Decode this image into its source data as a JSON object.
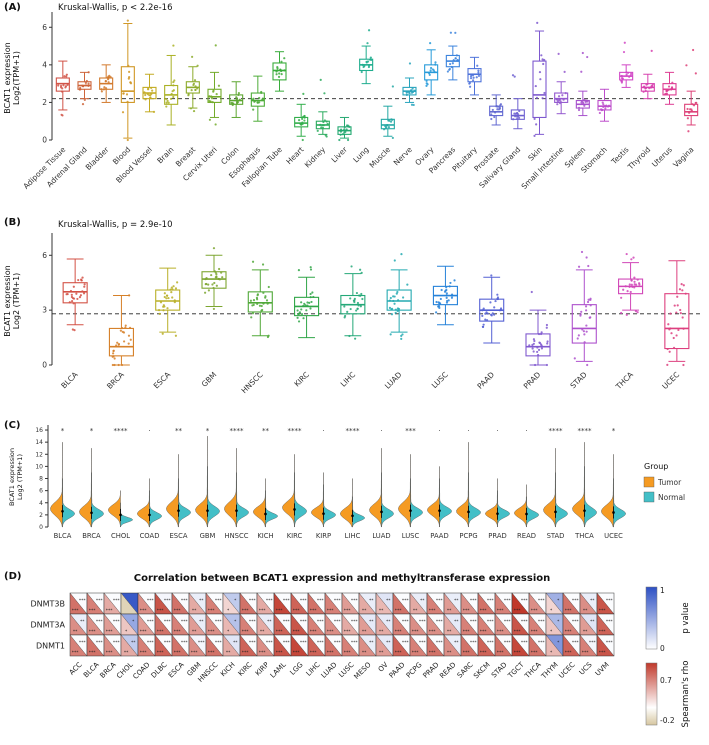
{
  "figure": {
    "bg": "#ffffff",
    "panel_labels": {
      "a": "(A)",
      "b": "(B)",
      "c": "(C)",
      "d": "(D)"
    }
  },
  "chart_data": [
    {
      "id": "A",
      "type": "box",
      "title": "Kruskal-Wallis, p < 2.2e-16",
      "ylabel_lines": [
        "BCAT1 expression",
        "Log2(TPM+1)"
      ],
      "ylim": [
        0,
        6.6
      ],
      "yticks": [
        0,
        2,
        4,
        6
      ],
      "dashed_line": 2.2,
      "categories": [
        "Adipose Tissue",
        "Adrenal Gland",
        "Bladder",
        "Blood",
        "Blood Vessel",
        "Brain",
        "Breast",
        "Cervix Uteri",
        "Colon",
        "Esophagus",
        "Fallopian Tube",
        "Heart",
        "Kidney",
        "Liver",
        "Lung",
        "Muscle",
        "Nerve",
        "Ovary",
        "Pancreas",
        "Pituitary",
        "Prostate",
        "Salivary Gland",
        "Skin",
        "Small Intestine",
        "Spleen",
        "Stomach",
        "Testis",
        "Thyroid",
        "Uterus",
        "Vagina"
      ],
      "colors": [
        "hsl(5,60%,55%)",
        "hsl(17,60%,52%)",
        "hsl(28,65%,50%)",
        "hsl(40,70%,48%)",
        "hsl(51,70%,45%)",
        "hsl(63,65%,42%)",
        "hsl(74,60%,42%)",
        "hsl(86,60%,42%)",
        "hsl(97,55%,42%)",
        "hsl(109,50%,45%)",
        "hsl(121,50%,45%)",
        "hsl(132,55%,44%)",
        "hsl(144,60%,42%)",
        "hsl(155,65%,40%)",
        "hsl(167,70%,40%)",
        "hsl(178,65%,40%)",
        "hsl(190,65%,45%)",
        "hsl(201,70%,50%)",
        "hsl(213,70%,55%)",
        "hsl(224,65%,58%)",
        "hsl(236,55%,60%)",
        "hsl(247,55%,60%)",
        "hsl(259,55%,58%)",
        "hsl(270,55%,58%)",
        "hsl(282,55%,56%)",
        "hsl(293,55%,55%)",
        "hsl(305,60%,55%)",
        "hsl(316,65%,55%)",
        "hsl(328,70%,55%)",
        "hsl(339,70%,56%)"
      ],
      "boxes": [
        [
          1.6,
          2.6,
          3.0,
          3.3,
          4.2
        ],
        [
          2.2,
          2.7,
          2.9,
          3.1,
          3.6
        ],
        [
          2.0,
          2.7,
          3.0,
          3.3,
          4.0
        ],
        [
          0.1,
          2.0,
          2.6,
          3.9,
          6.2
        ],
        [
          1.5,
          2.2,
          2.5,
          2.8,
          3.5
        ],
        [
          0.8,
          1.9,
          2.4,
          2.9,
          4.5
        ],
        [
          1.7,
          2.5,
          2.8,
          3.1,
          3.9
        ],
        [
          1.2,
          2.0,
          2.3,
          2.7,
          3.6
        ],
        [
          1.2,
          1.9,
          2.1,
          2.4,
          3.1
        ],
        [
          1.0,
          1.8,
          2.1,
          2.5,
          3.4
        ],
        [
          2.6,
          3.2,
          3.7,
          4.1,
          4.7
        ],
        [
          0.2,
          0.7,
          0.9,
          1.2,
          1.9
        ],
        [
          0.3,
          0.6,
          0.8,
          1.0,
          1.5
        ],
        [
          0.1,
          0.3,
          0.5,
          0.7,
          1.2
        ],
        [
          3.0,
          3.7,
          4.0,
          4.3,
          5.0
        ],
        [
          0.2,
          0.6,
          0.8,
          1.1,
          1.8
        ],
        [
          2.0,
          2.4,
          2.6,
          2.8,
          3.3
        ],
        [
          2.4,
          3.2,
          3.6,
          4.0,
          4.8
        ],
        [
          3.2,
          3.9,
          4.2,
          4.5,
          5.0
        ],
        [
          2.4,
          3.1,
          3.5,
          3.8,
          4.4
        ],
        [
          0.8,
          1.3,
          1.5,
          1.8,
          2.4
        ],
        [
          0.6,
          1.1,
          1.3,
          1.6,
          2.2
        ],
        [
          0.3,
          1.2,
          2.4,
          4.2,
          5.8
        ],
        [
          1.4,
          2.0,
          2.2,
          2.5,
          3.1
        ],
        [
          1.3,
          1.7,
          1.9,
          2.1,
          2.6
        ],
        [
          1.0,
          1.6,
          1.8,
          2.1,
          2.7
        ],
        [
          2.8,
          3.2,
          3.4,
          3.6,
          4.0
        ],
        [
          2.2,
          2.6,
          2.8,
          3.0,
          3.5
        ],
        [
          1.9,
          2.4,
          2.7,
          3.0,
          3.6
        ],
        [
          0.8,
          1.3,
          1.5,
          1.9,
          2.6
        ]
      ]
    },
    {
      "id": "B",
      "type": "box",
      "title": "Kruskal-Wallis, p = 2.9e-10",
      "ylabel_lines": [
        "BCAT1 expression",
        "Log2 (TPM+1)"
      ],
      "ylim": [
        0,
        7
      ],
      "yticks": [
        0,
        3,
        6
      ],
      "dashed_line": 2.8,
      "categories": [
        "BLCA",
        "BRCA",
        "ESCA",
        "GBM",
        "HNSCC",
        "KIRC",
        "LIHC",
        "LUAD",
        "LUSC",
        "PAAD",
        "PRAD",
        "STAD",
        "THCA",
        "UCEC"
      ],
      "colors": [
        "hsl(5,62%,55%)",
        "hsl(30,68%,50%)",
        "hsl(56,65%,44%)",
        "hsl(81,55%,42%)",
        "hsl(107,50%,44%)",
        "hsl(132,55%,42%)",
        "hsl(158,65%,40%)",
        "hsl(183,65%,42%)",
        "hsl(209,70%,50%)",
        "hsl(234,60%,58%)",
        "hsl(260,55%,58%)",
        "hsl(285,55%,56%)",
        "hsl(311,60%,55%)",
        "hsl(336,70%,56%)"
      ],
      "boxes": [
        [
          2.2,
          3.4,
          4.0,
          4.5,
          5.8
        ],
        [
          0.0,
          0.5,
          1.0,
          2.0,
          3.8
        ],
        [
          1.8,
          3.0,
          3.5,
          4.1,
          5.3
        ],
        [
          3.2,
          4.2,
          4.7,
          5.1,
          6.0
        ],
        [
          1.6,
          2.9,
          3.4,
          4.0,
          5.2
        ],
        [
          1.5,
          2.7,
          3.2,
          3.7,
          4.8
        ],
        [
          1.6,
          2.8,
          3.3,
          3.8,
          5.0
        ],
        [
          1.8,
          3.0,
          3.5,
          4.1,
          5.2
        ],
        [
          2.2,
          3.3,
          3.8,
          4.3,
          5.4
        ],
        [
          1.2,
          2.4,
          3.0,
          3.6,
          4.8
        ],
        [
          0.0,
          0.5,
          1.0,
          1.7,
          3.0
        ],
        [
          0.2,
          1.2,
          2.0,
          3.3,
          5.2
        ],
        [
          3.0,
          3.9,
          4.3,
          4.7,
          5.6
        ],
        [
          0.2,
          0.9,
          2.0,
          3.9,
          5.7
        ]
      ]
    },
    {
      "id": "C",
      "type": "split-violin",
      "ylabel_lines": [
        "BCAT1 expression",
        "Log2 (TPM+1)"
      ],
      "ylim": [
        0,
        16.5
      ],
      "yticks": [
        0,
        2,
        4,
        6,
        8,
        10,
        12,
        14,
        16
      ],
      "categories": [
        "BLCA",
        "BRCA",
        "CHOL",
        "COAD",
        "ESCA",
        "GBM",
        "HNSCC",
        "KICH",
        "KIRC",
        "KIRP",
        "LIHC",
        "LUAD",
        "LUSC",
        "PAAD",
        "PCPG",
        "PRAD",
        "READ",
        "STAD",
        "THCA",
        "UCEC"
      ],
      "significance": [
        "*",
        "*",
        "****",
        "·",
        "**",
        "*",
        "****",
        "**",
        "****",
        "·",
        "****",
        "·",
        "***",
        "·",
        "·",
        "·",
        "·",
        "****",
        "****",
        "*"
      ],
      "legend": {
        "title": "Group",
        "items": [
          {
            "label": "Tumor",
            "color": "#F59B23"
          },
          {
            "label": "Normal",
            "color": "#43BFC7"
          }
        ]
      },
      "tumor": {
        "mu": [
          3.0,
          2.5,
          2.8,
          2.2,
          3.0,
          2.8,
          3.0,
          2.5,
          3.2,
          2.4,
          2.2,
          2.8,
          3.0,
          2.8,
          2.6,
          2.2,
          2.3,
          2.8,
          3.0,
          2.6
        ],
        "sigma": [
          1.1,
          1.0,
          0.9,
          0.8,
          1.1,
          1.0,
          1.1,
          0.9,
          1.0,
          0.8,
          0.9,
          1.0,
          1.1,
          0.9,
          0.9,
          0.7,
          0.8,
          1.0,
          1.0,
          1.0
        ],
        "tail": [
          14,
          13,
          6,
          8,
          12,
          15,
          13,
          8,
          12,
          9,
          8,
          13,
          12,
          10,
          14,
          8,
          7,
          13,
          14,
          12
        ]
      },
      "normal": {
        "mu": [
          2.2,
          2.2,
          1.2,
          1.8,
          2.4,
          2.6,
          2.4,
          1.8,
          2.6,
          2.0,
          1.5,
          2.2,
          2.4,
          2.6,
          2.4,
          2.2,
          2.0,
          2.2,
          2.4,
          2.2
        ],
        "sigma": [
          0.7,
          0.7,
          0.4,
          0.6,
          0.7,
          0.8,
          0.7,
          0.5,
          0.8,
          0.6,
          0.5,
          0.7,
          0.7,
          0.7,
          0.7,
          0.6,
          0.6,
          0.7,
          0.8,
          0.7
        ],
        "tail": [
          8,
          9,
          4,
          6,
          8,
          10,
          9,
          6,
          9,
          7,
          5,
          9,
          8,
          8,
          9,
          6,
          5,
          9,
          10,
          8
        ]
      }
    },
    {
      "id": "D",
      "type": "split-heatmap",
      "title": "Correlation between BCAT1 expression and methyltransferase expression",
      "rows": [
        "DNMT3B",
        "DNMT3A",
        "DNMT1"
      ],
      "columns": [
        "ACC",
        "BLCA",
        "BRCA",
        "CHOL",
        "COAD",
        "DLBC",
        "ESCA",
        "GBM",
        "HNSCC",
        "KICH",
        "KIRC",
        "KIRP",
        "LAML",
        "LGG",
        "LIHC",
        "LUAD",
        "LUSC",
        "MESO",
        "OV",
        "PAAD",
        "PCPG",
        "PRAD",
        "READ",
        "SARC",
        "SKCM",
        "STAD",
        "TGCT",
        "THCA",
        "THYM",
        "UCEC",
        "UCS",
        "UVM"
      ],
      "rho": [
        [
          0.5,
          0.45,
          0.3,
          -0.15,
          0.4,
          0.6,
          0.5,
          0.3,
          0.45,
          0.15,
          0.5,
          0.3,
          0.65,
          0.55,
          0.5,
          0.45,
          0.35,
          0.3,
          0.25,
          0.5,
          0.3,
          0.45,
          0.35,
          0.4,
          0.5,
          0.45,
          0.7,
          0.4,
          0.15,
          0.5,
          0.4,
          0.6
        ],
        [
          0.4,
          0.4,
          0.35,
          0.2,
          0.35,
          0.5,
          0.45,
          0.35,
          0.4,
          0.25,
          0.45,
          0.3,
          0.55,
          0.6,
          0.45,
          0.4,
          0.3,
          0.35,
          0.3,
          0.45,
          0.4,
          0.4,
          0.3,
          0.45,
          0.45,
          0.4,
          0.6,
          0.45,
          0.2,
          0.45,
          0.35,
          0.55
        ],
        [
          0.45,
          0.5,
          0.4,
          0.3,
          0.45,
          0.55,
          0.5,
          0.4,
          0.5,
          0.3,
          0.55,
          0.4,
          0.6,
          0.65,
          0.55,
          0.5,
          0.45,
          0.4,
          0.35,
          0.55,
          0.45,
          0.5,
          0.4,
          0.5,
          0.55,
          0.5,
          0.65,
          0.5,
          0.25,
          0.55,
          0.45,
          0.6
        ]
      ],
      "pval": [
        [
          0.02,
          0.02,
          0.02,
          0.95,
          0.02,
          0.05,
          0.02,
          0.1,
          0.02,
          0.3,
          0.02,
          0.02,
          0.02,
          0.02,
          0.02,
          0.02,
          0.02,
          0.1,
          0.15,
          0.02,
          0.1,
          0.02,
          0.1,
          0.02,
          0.02,
          0.02,
          0.02,
          0.02,
          0.45,
          0.02,
          0.1,
          0.02
        ],
        [
          0.1,
          0.02,
          0.02,
          0.5,
          0.02,
          0.02,
          0.02,
          0.1,
          0.02,
          0.35,
          0.02,
          0.1,
          0.02,
          0.02,
          0.02,
          0.02,
          0.02,
          0.12,
          0.12,
          0.02,
          0.02,
          0.02,
          0.12,
          0.02,
          0.02,
          0.02,
          0.02,
          0.02,
          0.4,
          0.02,
          0.15,
          0.02
        ],
        [
          0.02,
          0.02,
          0.02,
          0.3,
          0.02,
          0.02,
          0.02,
          0.05,
          0.02,
          0.15,
          0.02,
          0.02,
          0.02,
          0.02,
          0.02,
          0.02,
          0.02,
          0.1,
          0.12,
          0.02,
          0.02,
          0.02,
          0.1,
          0.02,
          0.02,
          0.02,
          0.02,
          0.02,
          0.6,
          0.02,
          0.05,
          0.02
        ]
      ],
      "stars": [
        [
          "***",
          "***",
          "***",
          "",
          "***",
          "***",
          "***",
          "**",
          "***",
          "*",
          "***",
          "***",
          "***",
          "***",
          "***",
          "***",
          "***",
          "**",
          "**",
          "***",
          "**",
          "***",
          "**",
          "***",
          "***",
          "***",
          "***",
          "***",
          "*",
          "***",
          "**",
          "***"
        ],
        [
          "**",
          "***",
          "***",
          "*",
          "***",
          "***",
          "***",
          "**",
          "***",
          "*",
          "***",
          "**",
          "***",
          "***",
          "***",
          "***",
          "***",
          "**",
          "**",
          "***",
          "***",
          "***",
          "**",
          "***",
          "***",
          "***",
          "***",
          "***",
          "*",
          "***",
          "**",
          "***"
        ],
        [
          "***",
          "***",
          "***",
          "**",
          "***",
          "***",
          "***",
          "***",
          "***",
          "**",
          "***",
          "***",
          "***",
          "***",
          "***",
          "***",
          "***",
          "**",
          "**",
          "***",
          "***",
          "***",
          "**",
          "***",
          "***",
          "***",
          "***",
          "***",
          "*",
          "***",
          "***",
          "***"
        ]
      ],
      "legend_p": {
        "title": "p value",
        "ticks": [
          "1",
          "0"
        ],
        "color_hi": "#2D50C4",
        "color_lo": "#FFFFFF"
      },
      "legend_rho": {
        "title": "Spearman's rho",
        "ticks": [
          "0.7",
          "-0.2"
        ],
        "color_hi": "#C0392B",
        "color_lo": "#D6C6A0"
      }
    }
  ]
}
